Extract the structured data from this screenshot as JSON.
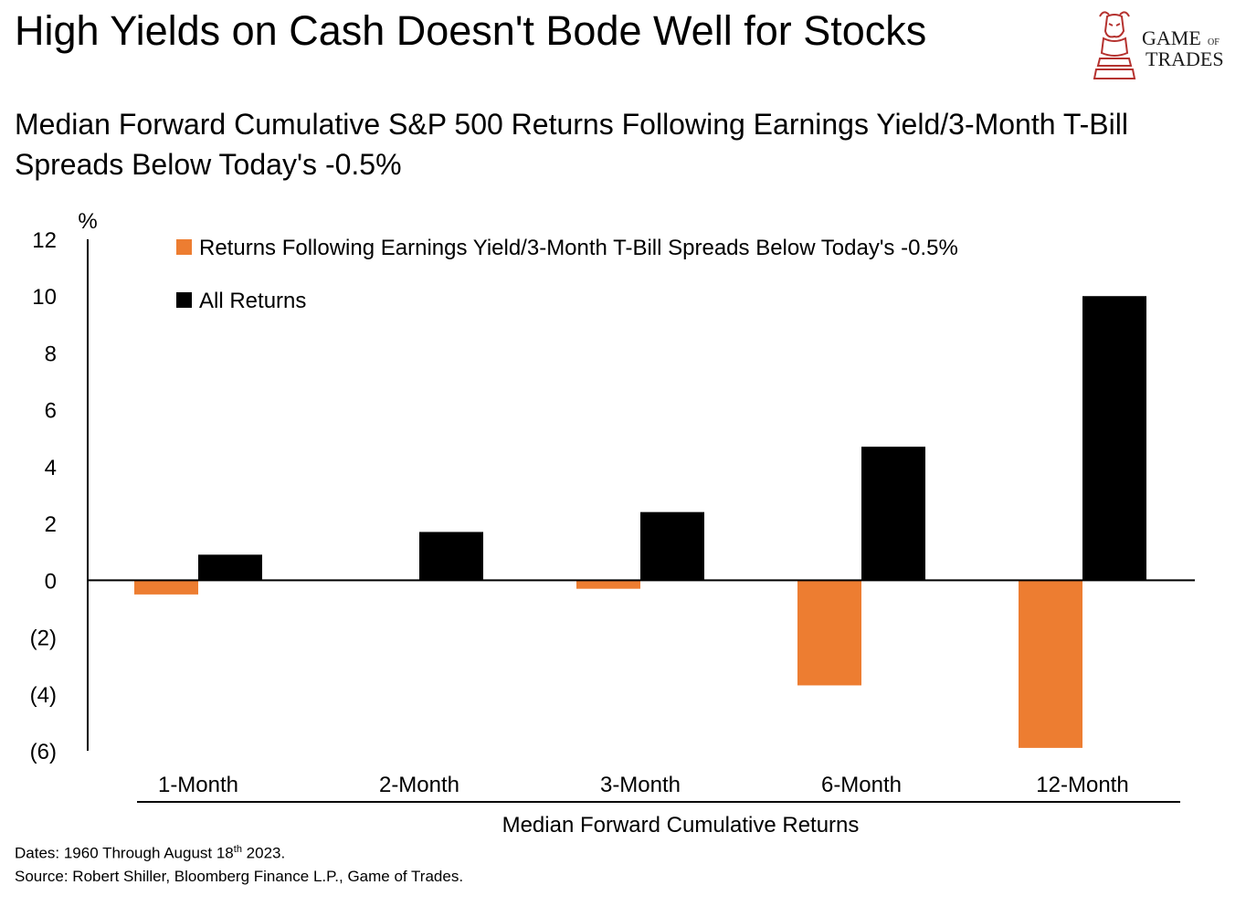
{
  "title": "High Yields on Cash Doesn't Bode Well for Stocks",
  "subtitle": "Median Forward Cumulative S&P 500 Returns Following Earnings Yield/3-Month T-Bill Spreads Below Today's -0.5%",
  "logo": {
    "line1": "GAME",
    "small": "OF",
    "line2": "TRADES",
    "icon": "bull-knight-icon"
  },
  "notes": {
    "dates_prefix": "Dates: 1960 Through August 18",
    "dates_sup": "th",
    "dates_suffix": " 2023.",
    "source": "Source: Robert Shiller, Bloomberg Finance L.P., Game of Trades."
  },
  "colors": {
    "orange": "#ED7D31",
    "black": "#000000"
  },
  "chart_data": {
    "type": "bar",
    "categories": [
      "1-Month",
      "2-Month",
      "3-Month",
      "6-Month",
      "12-Month"
    ],
    "series": [
      {
        "name": "Returns Following Earnings Yield/3-Month T-Bill Spreads Below Today's -0.5%",
        "color": "#ED7D31",
        "values": [
          -0.5,
          0.0,
          -0.3,
          -3.7,
          -5.9
        ]
      },
      {
        "name": "All Returns",
        "color": "#000000",
        "values": [
          0.9,
          1.7,
          2.4,
          4.7,
          10.0
        ]
      }
    ],
    "xlabel": "Median Forward Cumulative Returns",
    "ylabel": "%",
    "ylim": [
      -6,
      12
    ],
    "yticks": [
      12,
      10,
      8,
      6,
      4,
      2,
      0,
      -2,
      -4,
      -6
    ],
    "ytick_labels": [
      "12",
      "10",
      "8",
      "6",
      "4",
      "2",
      "0",
      "(2)",
      "(4)",
      "(6)"
    ],
    "legend_position": "top-left"
  }
}
